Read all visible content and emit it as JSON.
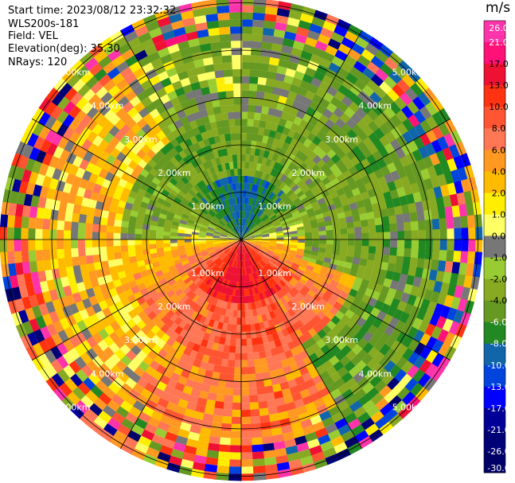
{
  "meta": {
    "start_time": "Start time: 2023/08/12 23:32:32",
    "instrument": "WLS200s-181",
    "field": "Field: VEL",
    "elevation": "Elevation(deg): 35.30",
    "nrays": "NRays: 120"
  },
  "colorbar": {
    "unit": "m/s",
    "ticks": [
      "26.0",
      "21.0",
      "17.0",
      "13.0",
      "10.0",
      "8.0",
      "6.0",
      "4.0",
      "2.0",
      "1.0",
      "0.0",
      "-1.0",
      "-2.0",
      "-4.0",
      "-6.0",
      "-8.0",
      "-10.0",
      "-13.0",
      "-17.0",
      "-21.0",
      "-26.0",
      "-30.0"
    ],
    "colors": [
      "#ff33aa",
      "#ff1177",
      "#ee1133",
      "#ff3311",
      "#ff5533",
      "#ff7755",
      "#ff9922",
      "#ffbb00",
      "#ffee00",
      "#ffff66",
      "#777777",
      "#99cc33",
      "#88aa22",
      "#669922",
      "#228822",
      "#1166aa",
      "#0044dd",
      "#0000ff",
      "#000099",
      "#000077",
      "#000066",
      "#000044"
    ]
  },
  "chart_data": {
    "type": "heatmap",
    "projection": "polar-ppi",
    "rays": 120,
    "range_rings_km": [
      1.0,
      2.0,
      3.0,
      4.0,
      5.0
    ],
    "ring_labels": [
      "1.00km",
      "2.00km",
      "3.00km",
      "4.00km",
      "5.00km"
    ],
    "azimuth_spoke_step_deg": 30,
    "value_unit": "m/s",
    "value_range": [
      -30.0,
      30.0
    ],
    "velocity_pattern": [
      {
        "sector": "north",
        "radial_velocity_near_center": -9.0,
        "radial_velocity_mid": -3.0
      },
      {
        "sector": "south",
        "radial_velocity_near_center": 14.0,
        "radial_velocity_mid": 5.0
      },
      {
        "sector": "east",
        "radial_velocity_near_center": 1.0,
        "radial_velocity_mid": -4.0
      },
      {
        "sector": "west",
        "radial_velocity_near_center": 1.5,
        "radial_velocity_mid": 2.5
      }
    ]
  }
}
